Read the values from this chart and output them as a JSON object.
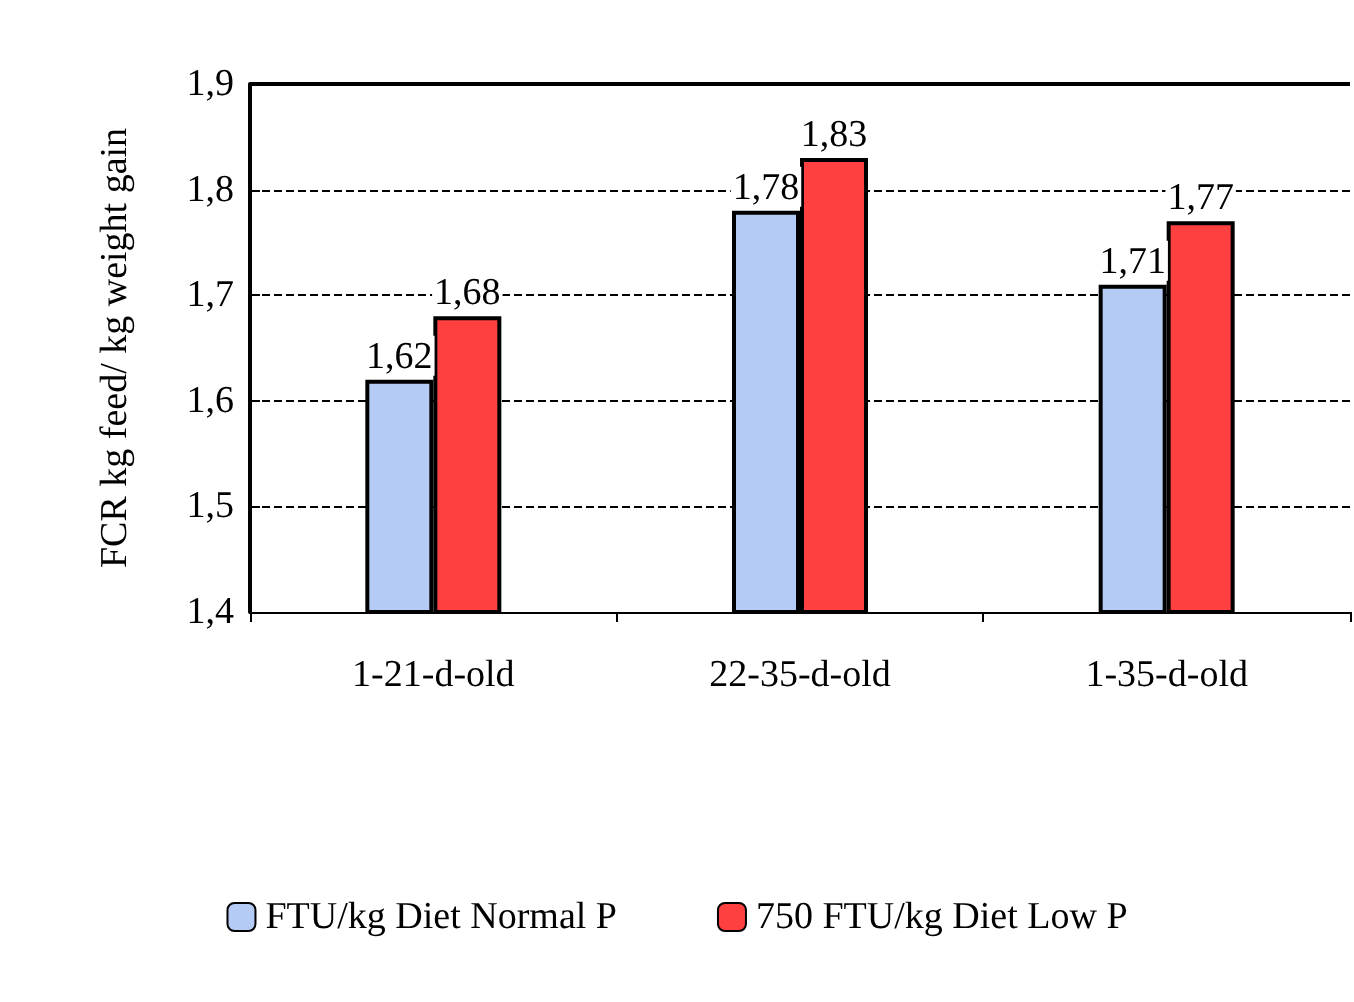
{
  "chart_data": {
    "type": "bar",
    "ylabel": "FCR kg feed/ kg weight gain",
    "categories": [
      "1-21-d-old",
      "22-35-d-old",
      "1-35-d-old"
    ],
    "series": [
      {
        "name": "FTU/kg Diet Normal P",
        "color": "#b4cbf5",
        "values": [
          1.62,
          1.78,
          1.71
        ],
        "value_labels": [
          "1,62",
          "1,78",
          "1,71"
        ]
      },
      {
        "name": "750 FTU/kg Diet Low P",
        "color": "#ff4040",
        "values": [
          1.68,
          1.83,
          1.77
        ],
        "value_labels": [
          "1,68",
          "1,83",
          "1,77"
        ]
      }
    ],
    "ylim": [
      1.4,
      1.9
    ],
    "yticks": [
      {
        "value": 1.4,
        "label": "1,4"
      },
      {
        "value": 1.5,
        "label": "1,5"
      },
      {
        "value": 1.6,
        "label": "1,6"
      },
      {
        "value": 1.7,
        "label": "1,7"
      },
      {
        "value": 1.8,
        "label": "1,8"
      },
      {
        "value": 1.9,
        "label": "1,9"
      }
    ],
    "grid": "y",
    "legend": "bottom"
  }
}
